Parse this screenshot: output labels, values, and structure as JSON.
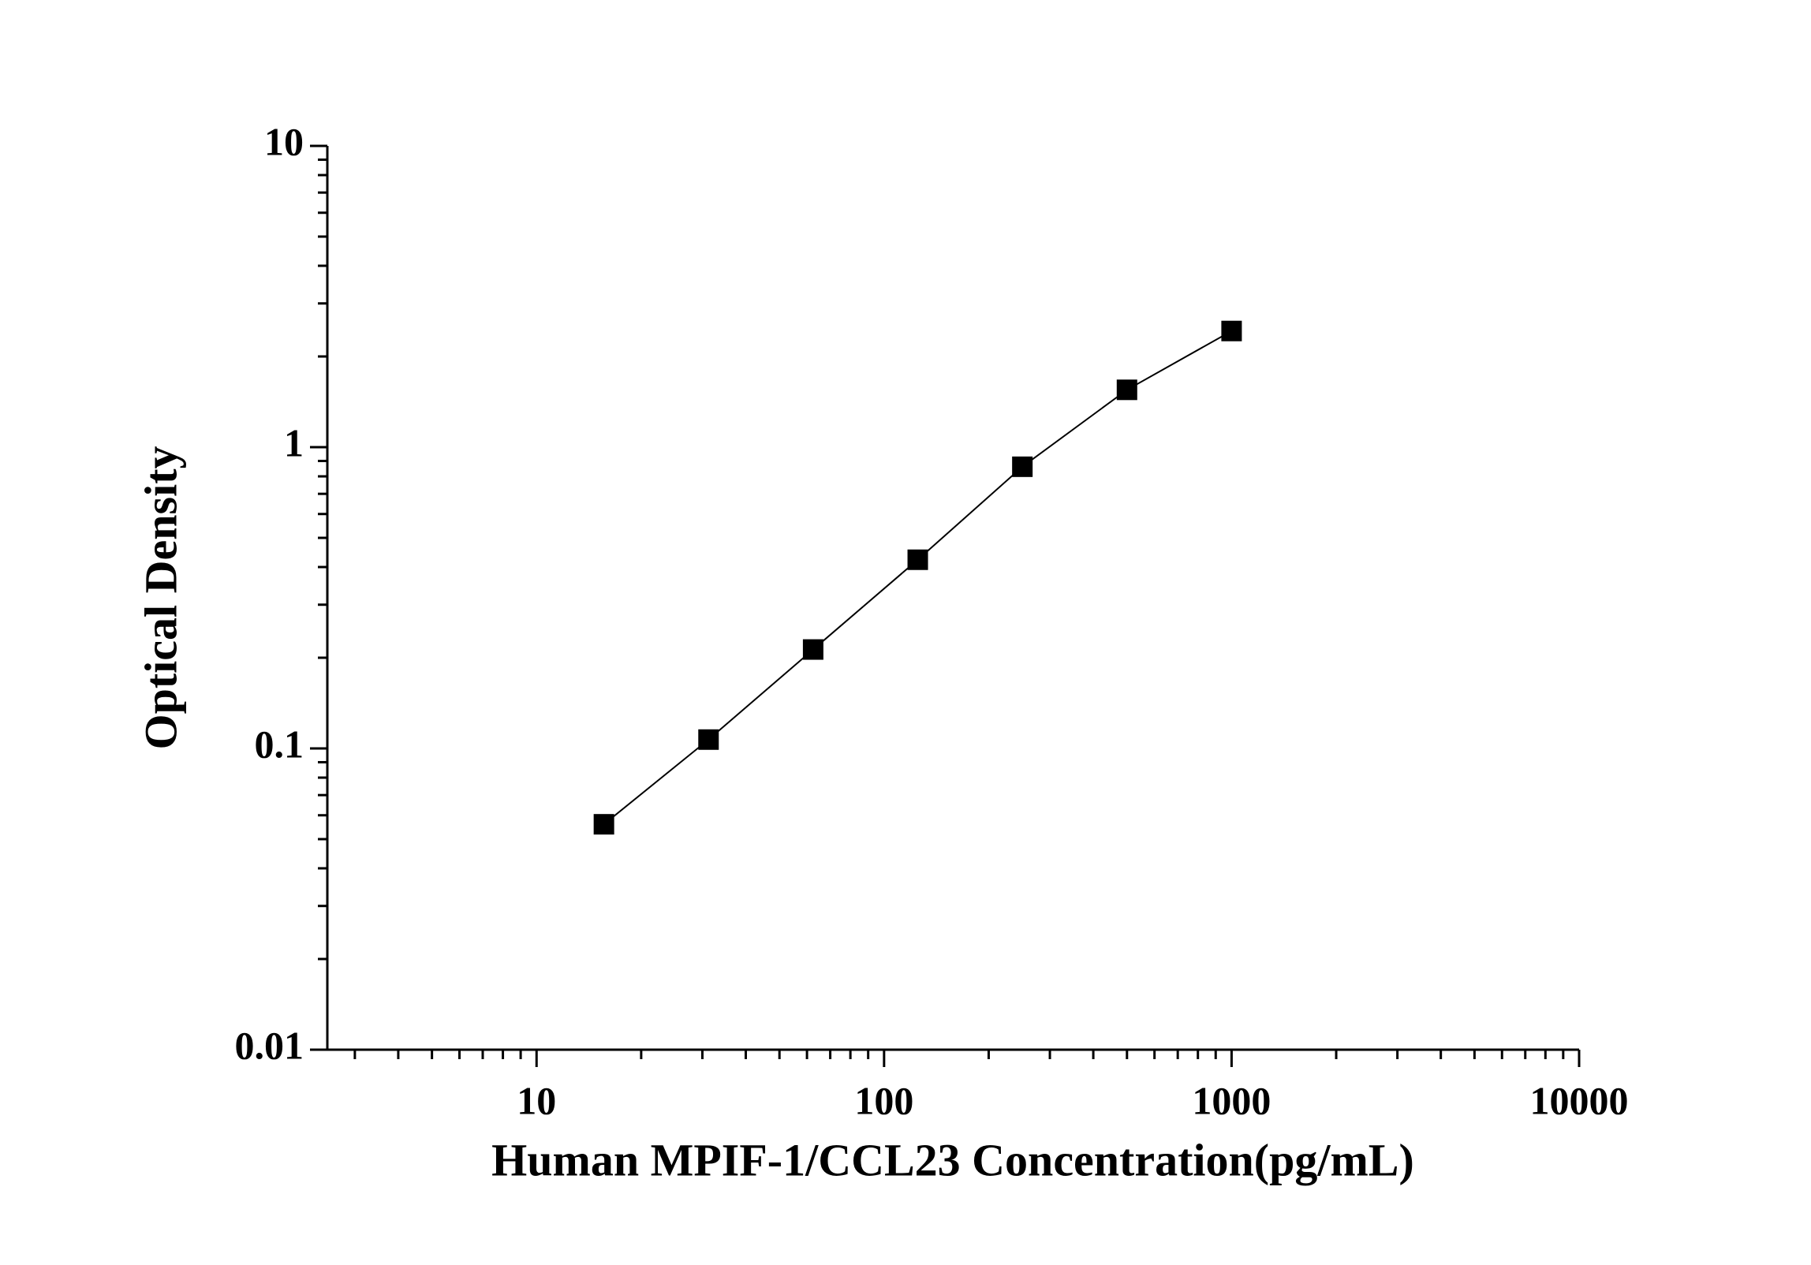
{
  "chart_data": {
    "type": "line",
    "x_label": "Human MPIF-1/CCL23 Concentration(pg/mL)",
    "y_label": "Optical Density",
    "x": [
      15.625,
      31.25,
      62.5,
      125,
      250,
      500,
      1000
    ],
    "series": [
      {
        "color": "#000000",
        "values": [
          0.056,
          0.107,
          0.213,
          0.423,
          0.861,
          1.55,
          2.43
        ]
      }
    ],
    "xlim": [
      2.5,
      10000
    ],
    "ylim": [
      0.01,
      10
    ],
    "xticks": [
      10,
      100,
      1000,
      10000
    ],
    "yticks": [
      0.01,
      0.1,
      1,
      10
    ],
    "xscale": "log",
    "yscale": "log",
    "marker": "square"
  }
}
